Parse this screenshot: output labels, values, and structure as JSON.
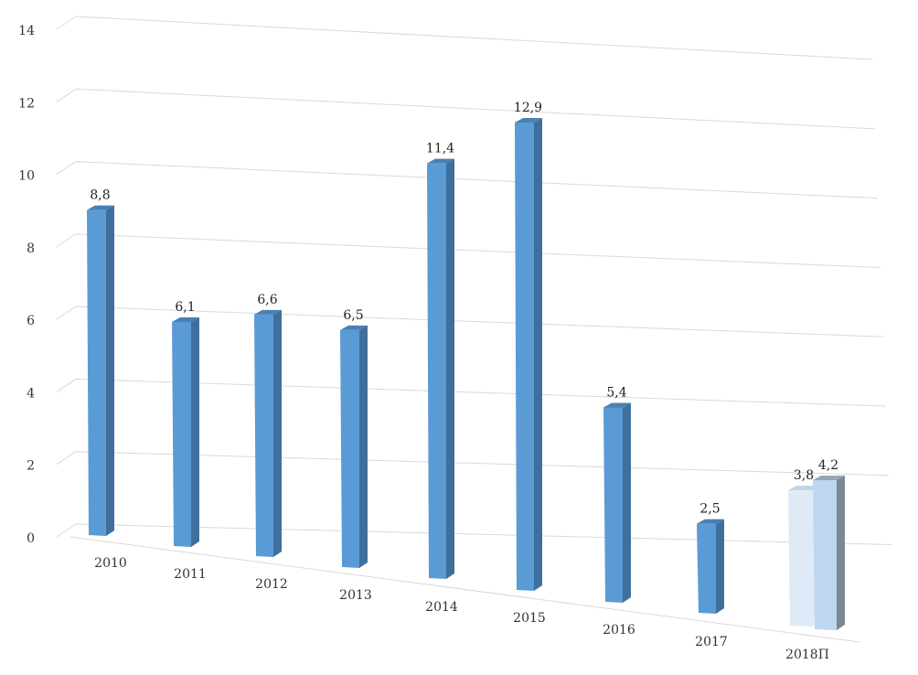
{
  "chart_data": {
    "type": "bar",
    "title": "",
    "xlabel": "",
    "ylabel": "",
    "ylim": [
      0,
      14
    ],
    "yticks": [
      "0",
      "2",
      "4",
      "6",
      "8",
      "10",
      "12",
      "14"
    ],
    "grid": true,
    "legend": "none",
    "categories": [
      "2010",
      "2011",
      "2012",
      "2013",
      "2014",
      "2015",
      "2016",
      "2017",
      "2018П"
    ],
    "bars": [
      {
        "category": "2010",
        "value": 8.8,
        "label": "8,8"
      },
      {
        "category": "2011",
        "value": 6.1,
        "label": "6,1"
      },
      {
        "category": "2012",
        "value": 6.6,
        "label": "6,6"
      },
      {
        "category": "2013",
        "value": 6.5,
        "label": "6,5"
      },
      {
        "category": "2014",
        "value": 11.4,
        "label": "11,4"
      },
      {
        "category": "2015",
        "value": 12.9,
        "label": "12,9"
      },
      {
        "category": "2016",
        "value": 5.4,
        "label": "5,4"
      },
      {
        "category": "2017",
        "value": 2.5,
        "label": "2,5"
      },
      {
        "category": "2018П",
        "value": 3.8,
        "label": "3,8",
        "variant": "forecast-low"
      },
      {
        "category": "2018П",
        "value": 4.2,
        "label": "4,2",
        "variant": "forecast-high"
      }
    ],
    "colors": {
      "bar_front": "#5b9bd5",
      "bar_side": "#3f6f9c",
      "bar_top": "#4a80b4",
      "forecast_low_front": "#deebf7",
      "forecast_low_top": "#c4d5e6",
      "forecast_high_front": "#bdd7ee",
      "forecast_high_side": "#7b8894",
      "forecast_high_top": "#97a5b3",
      "grid": "#d9d9d9"
    }
  }
}
